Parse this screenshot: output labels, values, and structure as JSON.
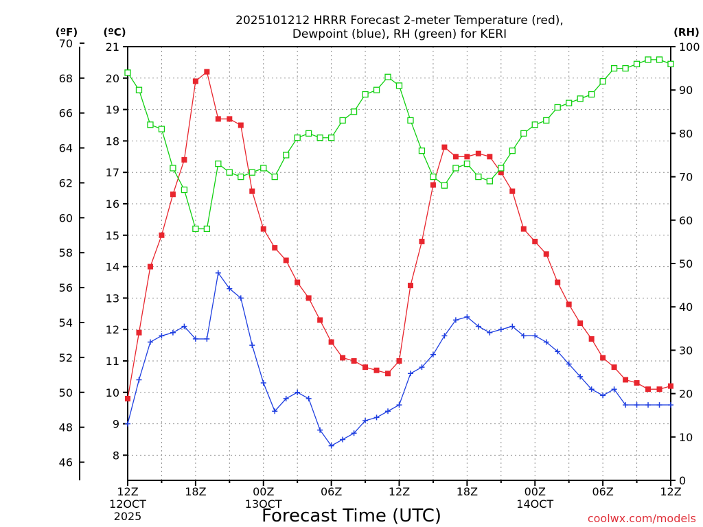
{
  "title_line1": "2025101212 HRRR Forecast 2-meter Temperature (red),",
  "title_line2": "Dewpoint (blue), RH (green) for KERI",
  "unit_f": "(ºF)",
  "unit_c": "(ºC)",
  "unit_rh": "(RH)",
  "xlabel": "Forecast Time (UTC)",
  "credit": "coolwx.com/models",
  "colors": {
    "temperature": "#e8262e",
    "dewpoint": "#1f3fe0",
    "rh": "#10d010",
    "grid": "#909090",
    "axis": "#000000"
  },
  "chart_data": {
    "type": "line",
    "title": "2025101212 HRRR Forecast 2-meter Temperature (red), Dewpoint (blue), RH (green) for KERI",
    "xlabel": "Forecast Time (UTC)",
    "x": [
      0,
      1,
      2,
      3,
      4,
      5,
      6,
      7,
      8,
      9,
      10,
      11,
      12,
      13,
      14,
      15,
      16,
      17,
      18,
      19,
      20,
      21,
      22,
      23,
      24,
      25,
      26,
      27,
      28,
      29,
      30,
      31,
      32,
      33,
      34,
      35,
      36,
      37,
      38,
      39,
      40,
      41,
      42,
      43,
      44,
      45,
      46,
      47,
      48
    ],
    "x_unit": "forecast hour from 2025-10-12 12Z",
    "x_ticks": [
      {
        "hour": 0,
        "label": [
          "12Z",
          "12OCT",
          "2025"
        ]
      },
      {
        "hour": 6,
        "label": [
          "18Z"
        ]
      },
      {
        "hour": 12,
        "label": [
          "00Z",
          "13OCT"
        ]
      },
      {
        "hour": 18,
        "label": [
          "06Z"
        ]
      },
      {
        "hour": 24,
        "label": [
          "12Z"
        ]
      },
      {
        "hour": 30,
        "label": [
          "18Z"
        ]
      },
      {
        "hour": 36,
        "label": [
          "00Z",
          "14OCT"
        ]
      },
      {
        "hour": 42,
        "label": [
          "06Z"
        ]
      },
      {
        "hour": 48,
        "label": [
          "12Z"
        ]
      }
    ],
    "y_left_c": {
      "label": "(ºC)",
      "range": [
        7.2,
        21.0
      ],
      "ticks": [
        8,
        9,
        10,
        11,
        12,
        13,
        14,
        15,
        16,
        17,
        18,
        19,
        20,
        21
      ]
    },
    "y_left_f": {
      "label": "(ºF)",
      "ticks": [
        46,
        48,
        50,
        52,
        54,
        56,
        58,
        60,
        62,
        64,
        66,
        68,
        70
      ]
    },
    "y_right_rh": {
      "label": "(RH)",
      "range": [
        0,
        100
      ],
      "ticks": [
        0,
        10,
        20,
        30,
        40,
        50,
        60,
        70,
        80,
        90,
        100
      ]
    },
    "grid": true,
    "series": [
      {
        "name": "Temperature",
        "unit": "C",
        "marker": "filled-square",
        "values": [
          9.8,
          11.9,
          14.0,
          15.0,
          16.3,
          17.4,
          19.9,
          20.2,
          18.7,
          18.7,
          18.5,
          16.4,
          15.2,
          14.6,
          14.2,
          13.5,
          13.0,
          12.3,
          11.6,
          11.1,
          11.0,
          10.8,
          10.7,
          10.6,
          11.0,
          13.4,
          14.8,
          16.6,
          17.8,
          17.5,
          17.5,
          17.6,
          17.5,
          17.0,
          16.4,
          15.2,
          14.8,
          14.4,
          13.5,
          12.8,
          12.2,
          11.7,
          11.1,
          10.8,
          10.4,
          10.3,
          10.1,
          10.1,
          10.2
        ]
      },
      {
        "name": "Dewpoint",
        "unit": "C",
        "marker": "plus",
        "values": [
          9.0,
          10.4,
          11.6,
          11.8,
          11.9,
          12.1,
          11.7,
          11.7,
          13.8,
          13.3,
          13.0,
          11.5,
          10.3,
          9.4,
          9.8,
          10.0,
          9.8,
          8.8,
          8.3,
          8.5,
          8.7,
          9.1,
          9.2,
          9.4,
          9.6,
          10.6,
          10.8,
          11.2,
          11.8,
          12.3,
          12.4,
          12.1,
          11.9,
          12.0,
          12.1,
          11.8,
          11.8,
          11.6,
          11.3,
          10.9,
          10.5,
          10.1,
          9.9,
          10.1,
          9.6,
          9.6,
          9.6,
          9.6,
          9.6
        ]
      },
      {
        "name": "RH",
        "unit": "%",
        "marker": "open-square",
        "values": [
          94,
          90,
          82,
          81,
          72,
          67,
          58,
          58,
          73,
          71,
          70,
          71,
          72,
          70,
          75,
          79,
          80,
          79,
          79,
          83,
          85,
          89,
          90,
          93,
          91,
          83,
          76,
          70,
          68,
          72,
          73,
          70,
          69,
          72,
          76,
          80,
          82,
          83,
          86,
          87,
          88,
          89,
          92,
          95,
          95,
          96,
          97,
          97,
          96
        ]
      }
    ]
  }
}
